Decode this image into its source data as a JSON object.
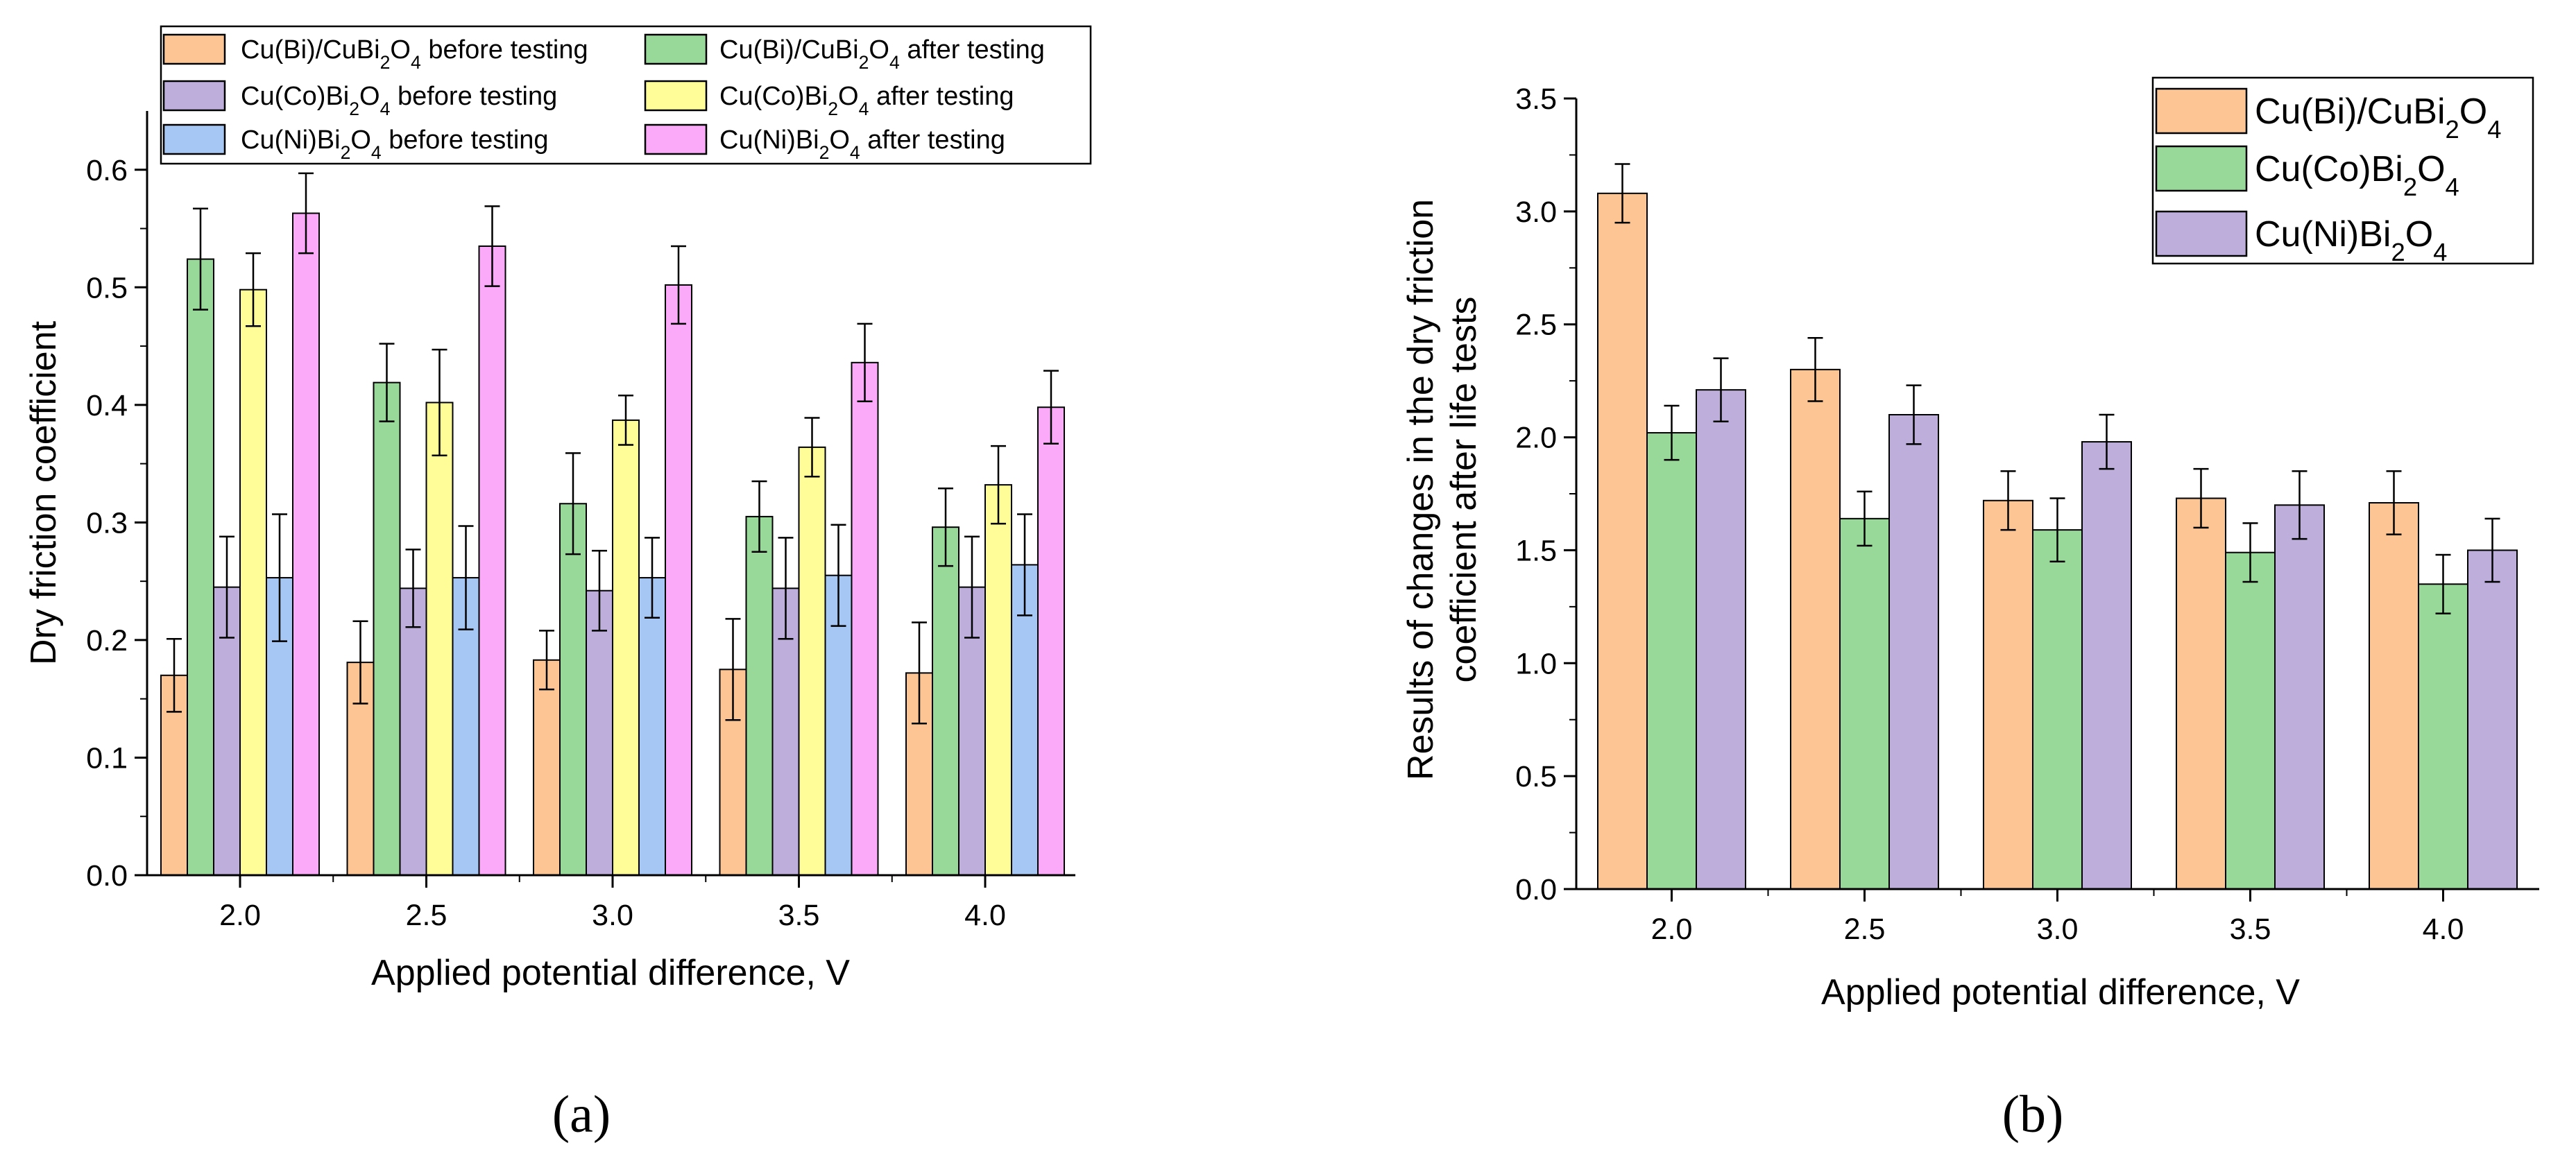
{
  "chart_data": [
    {
      "type": "bar",
      "panel_label": "a",
      "xlabel": "Applied potential difference, V",
      "ylabel": "Dry friction coefficient",
      "ylim": [
        0,
        0.65
      ],
      "yticks": [
        "0.0",
        "0.1",
        "0.2",
        "0.3",
        "0.4",
        "0.5",
        "0.6"
      ],
      "categories": [
        "2.0",
        "2.5",
        "3.0",
        "3.5",
        "4.0"
      ],
      "legend_position": "top",
      "series": [
        {
          "name": "Cu(Bi)/CuBi2O4 before testing",
          "label_parts": [
            "Cu(Bi)/CuBi",
            "2",
            "O",
            "4",
            " before testing"
          ],
          "color": "#fdc594",
          "values": [
            0.17,
            0.181,
            0.183,
            0.175,
            0.172
          ],
          "errors": [
            0.031,
            0.035,
            0.025,
            0.043,
            0.043
          ]
        },
        {
          "name": "Cu(Bi)/CuBi2O4 after testing",
          "label_parts": [
            "Cu(Bi)/CuBi",
            "2",
            "O",
            "4",
            " after testing"
          ],
          "color": "#98d899",
          "values": [
            0.524,
            0.419,
            0.316,
            0.305,
            0.296
          ],
          "errors": [
            0.043,
            0.033,
            0.043,
            0.03,
            0.033
          ]
        },
        {
          "name": "Cu(Co)Bi2O4 before testing",
          "label_parts": [
            "Cu(Co)Bi",
            "2",
            "O",
            "4",
            " before testing"
          ],
          "color": "#bdaedb",
          "values": [
            0.245,
            0.244,
            0.242,
            0.244,
            0.245
          ],
          "errors": [
            0.043,
            0.033,
            0.034,
            0.043,
            0.043
          ]
        },
        {
          "name": "Cu(Co)Bi2O4 after testing",
          "label_parts": [
            "Cu(Co)Bi",
            "2",
            "O",
            "4",
            "  after testing"
          ],
          "color": "#fffd98",
          "values": [
            0.498,
            0.402,
            0.387,
            0.364,
            0.332
          ],
          "errors": [
            0.031,
            0.045,
            0.021,
            0.025,
            0.033
          ]
        },
        {
          "name": "Cu(Ni)Bi2O4 before testing",
          "label_parts": [
            "Cu(Ni)Bi",
            "2",
            "O",
            "4",
            "  before testing"
          ],
          "color": "#a6c7f4",
          "values": [
            0.253,
            0.253,
            0.253,
            0.255,
            0.264
          ],
          "errors": [
            0.054,
            0.044,
            0.034,
            0.043,
            0.043
          ]
        },
        {
          "name": "Cu(Ni)Bi2O4 after testing",
          "label_parts": [
            "Cu(Ni)Bi",
            "2",
            "O",
            "4",
            " after testing"
          ],
          "color": "#fbaaf9",
          "values": [
            0.563,
            0.535,
            0.502,
            0.436,
            0.398
          ],
          "errors": [
            0.034,
            0.034,
            0.033,
            0.033,
            0.031
          ]
        }
      ]
    },
    {
      "type": "bar",
      "panel_label": "b",
      "xlabel": "Applied potential difference, V",
      "ylabel": "Results of changes in the dry friction coefficient after life tests",
      "ylabel_lines": [
        "Results of changes in the dry friction",
        "coefficient after life tests"
      ],
      "ylim": [
        0,
        3.5
      ],
      "yticks": [
        "0.0",
        "0.5",
        "1.0",
        "1.5",
        "2.0",
        "2.5",
        "3.0",
        "3.5"
      ],
      "categories": [
        "2.0",
        "2.5",
        "3.0",
        "3.5",
        "4.0"
      ],
      "legend_position": "top-right",
      "series": [
        {
          "name": "Cu(Bi)/CuBi2O4",
          "label_parts": [
            "Cu(Bi)/CuBi",
            "2",
            "O",
            "4",
            ""
          ],
          "color": "#fdc594",
          "values": [
            3.08,
            2.3,
            1.72,
            1.73,
            1.71
          ],
          "errors": [
            0.13,
            0.14,
            0.13,
            0.13,
            0.14
          ]
        },
        {
          "name": "Cu(Co)Bi2O4",
          "label_parts": [
            "Cu(Co)Bi",
            "2",
            "O",
            "4",
            ""
          ],
          "color": "#98d899",
          "values": [
            2.02,
            1.64,
            1.59,
            1.49,
            1.35
          ],
          "errors": [
            0.12,
            0.12,
            0.14,
            0.13,
            0.13
          ]
        },
        {
          "name": "Cu(Ni)Bi2O4",
          "label_parts": [
            "Cu(Ni)Bi",
            "2",
            "O",
            "4",
            ""
          ],
          "color": "#bdaedb",
          "values": [
            2.21,
            2.1,
            1.98,
            1.7,
            1.5
          ],
          "errors": [
            0.14,
            0.13,
            0.12,
            0.15,
            0.14
          ]
        }
      ]
    }
  ],
  "captions": {
    "a": "(a)",
    "b": "(b)"
  }
}
